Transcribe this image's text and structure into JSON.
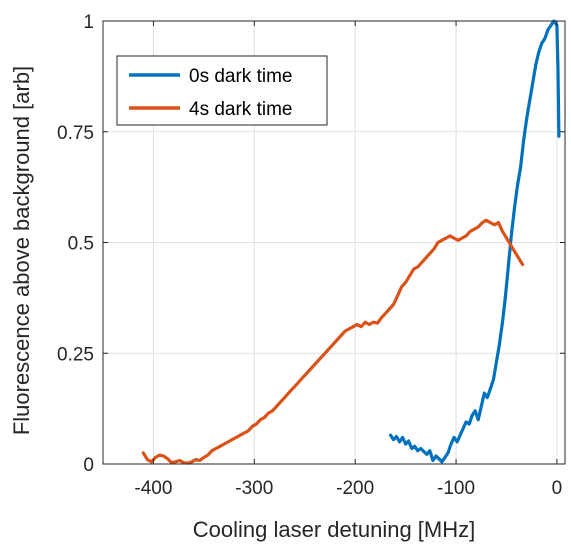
{
  "chart_data": {
    "type": "line",
    "title": "",
    "xlabel": "Cooling laser detuning [MHz]",
    "ylabel": "Fluorescence above background [arb]",
    "xlim": [
      -450,
      8
    ],
    "ylim": [
      0,
      1
    ],
    "xticks": [
      -400,
      -300,
      -200,
      -100,
      0
    ],
    "xtick_labels": [
      "-400",
      "-300",
      "-200",
      "-100",
      "0"
    ],
    "yticks": [
      0,
      0.25,
      0.5,
      0.75,
      1
    ],
    "ytick_labels": [
      "0",
      "0.25",
      "0.5",
      "0.75",
      "1"
    ],
    "grid": true,
    "legend_position": "top-left",
    "series": [
      {
        "name": "0s dark time",
        "color": "#0072BD",
        "x": [
          -165,
          -162,
          -159,
          -156,
          -153,
          -150,
          -147,
          -144,
          -141,
          -138,
          -135,
          -132,
          -129,
          -126,
          -123,
          -120,
          -117,
          -114,
          -111,
          -108,
          -105,
          -102,
          -99,
          -96,
          -93,
          -90,
          -87,
          -84,
          -81,
          -78,
          -75,
          -72,
          -69,
          -66,
          -63,
          -60,
          -57,
          -54,
          -51,
          -48,
          -45,
          -42,
          -39,
          -36,
          -33,
          -30,
          -27,
          -24,
          -21,
          -18,
          -15,
          -12,
          -9,
          -6,
          -3,
          0,
          1,
          2
        ],
        "y": [
          0.065,
          0.055,
          0.062,
          0.05,
          0.06,
          0.045,
          0.052,
          0.035,
          0.04,
          0.03,
          0.035,
          0.028,
          0.022,
          0.03,
          0.008,
          0.018,
          0.012,
          0.005,
          0.015,
          0.025,
          0.045,
          0.06,
          0.05,
          0.065,
          0.08,
          0.095,
          0.09,
          0.11,
          0.12,
          0.1,
          0.13,
          0.16,
          0.15,
          0.17,
          0.19,
          0.23,
          0.27,
          0.32,
          0.38,
          0.45,
          0.52,
          0.58,
          0.63,
          0.67,
          0.73,
          0.78,
          0.82,
          0.86,
          0.9,
          0.93,
          0.95,
          0.96,
          0.98,
          0.99,
          1.0,
          0.99,
          0.9,
          0.74
        ]
      },
      {
        "name": "4s dark time",
        "color": "#D95319",
        "x": [
          -410,
          -406,
          -402,
          -398,
          -394,
          -390,
          -386,
          -382,
          -378,
          -374,
          -370,
          -366,
          -362,
          -358,
          -354,
          -350,
          -346,
          -342,
          -338,
          -334,
          -330,
          -326,
          -322,
          -318,
          -314,
          -310,
          -306,
          -302,
          -298,
          -294,
          -290,
          -286,
          -282,
          -278,
          -274,
          -270,
          -266,
          -262,
          -258,
          -254,
          -250,
          -246,
          -242,
          -238,
          -234,
          -230,
          -226,
          -222,
          -218,
          -214,
          -210,
          -206,
          -202,
          -198,
          -194,
          -190,
          -186,
          -182,
          -178,
          -174,
          -170,
          -166,
          -162,
          -158,
          -154,
          -150,
          -146,
          -142,
          -138,
          -134,
          -130,
          -126,
          -122,
          -118,
          -114,
          -110,
          -106,
          -102,
          -98,
          -94,
          -90,
          -86,
          -82,
          -78,
          -74,
          -70,
          -66,
          -62,
          -58,
          -54,
          -50,
          -46,
          -42,
          -38,
          -34
        ],
        "y": [
          0.025,
          0.01,
          0.005,
          0.015,
          0.02,
          0.018,
          0.012,
          0.003,
          0.005,
          0.008,
          0.003,
          0.002,
          0.005,
          0.01,
          0.008,
          0.015,
          0.02,
          0.03,
          0.035,
          0.04,
          0.045,
          0.05,
          0.055,
          0.06,
          0.065,
          0.07,
          0.075,
          0.085,
          0.09,
          0.1,
          0.105,
          0.115,
          0.12,
          0.13,
          0.14,
          0.15,
          0.16,
          0.17,
          0.18,
          0.19,
          0.2,
          0.21,
          0.22,
          0.23,
          0.24,
          0.25,
          0.26,
          0.27,
          0.28,
          0.29,
          0.3,
          0.305,
          0.31,
          0.315,
          0.31,
          0.32,
          0.315,
          0.32,
          0.318,
          0.33,
          0.34,
          0.35,
          0.36,
          0.38,
          0.4,
          0.41,
          0.425,
          0.44,
          0.445,
          0.455,
          0.465,
          0.475,
          0.485,
          0.5,
          0.505,
          0.51,
          0.515,
          0.51,
          0.505,
          0.51,
          0.515,
          0.525,
          0.53,
          0.535,
          0.545,
          0.55,
          0.545,
          0.54,
          0.545,
          0.525,
          0.51,
          0.495,
          0.48,
          0.465,
          0.45
        ]
      }
    ]
  }
}
